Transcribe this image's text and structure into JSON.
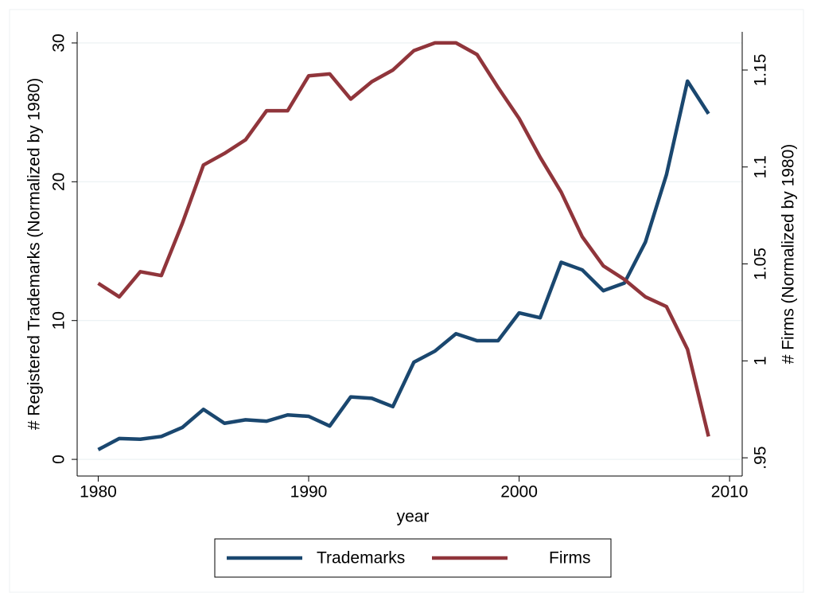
{
  "chart_data": {
    "type": "line",
    "xlabel": "year",
    "ylabel": "# Registered Trademarks (Normalized by 1980)",
    "y2label": "# Firms (Normalized by 1980)",
    "x": [
      1980,
      1981,
      1982,
      1983,
      1984,
      1985,
      1986,
      1987,
      1988,
      1989,
      1990,
      1991,
      1992,
      1993,
      1994,
      1995,
      1996,
      1997,
      1998,
      1999,
      2000,
      2001,
      2002,
      2003,
      2004,
      2005,
      2006,
      2007,
      2008,
      2009
    ],
    "series": [
      {
        "name": "Trademarks",
        "color": "#1a476f",
        "axis": "y",
        "values": [
          0.7,
          1.5,
          1.45,
          1.65,
          2.3,
          3.6,
          2.6,
          2.85,
          2.75,
          3.2,
          3.1,
          2.4,
          4.5,
          4.4,
          3.8,
          7.0,
          7.8,
          9.05,
          8.55,
          8.55,
          10.55,
          10.2,
          14.2,
          13.65,
          12.15,
          12.7,
          15.65,
          20.5,
          27.25,
          24.9
        ]
      },
      {
        "name": "Firms",
        "color": "#90353b",
        "axis": "y2",
        "values": [
          1.04,
          1.033,
          1.046,
          1.044,
          1.071,
          1.101,
          1.107,
          1.114,
          1.129,
          1.129,
          1.147,
          1.148,
          1.135,
          1.144,
          1.15,
          1.16,
          1.164,
          1.164,
          1.158,
          1.141,
          1.125,
          1.105,
          1.087,
          1.064,
          1.049,
          1.042,
          1.033,
          1.028,
          1.006,
          0.961
        ]
      }
    ],
    "xlim": [
      1979,
      2010.6
    ],
    "xticks": [
      1980,
      1990,
      2000,
      2010
    ],
    "ylim": [
      -1.2,
      30.8
    ],
    "yticks": [
      0,
      10,
      20,
      30
    ],
    "y2lim": [
      0.9406,
      1.1697
    ],
    "y2ticks": [
      {
        "value": 0.95,
        "label": ".95"
      },
      1,
      1.05,
      1.1,
      1.15
    ],
    "grid": true,
    "legend": "bottom"
  }
}
